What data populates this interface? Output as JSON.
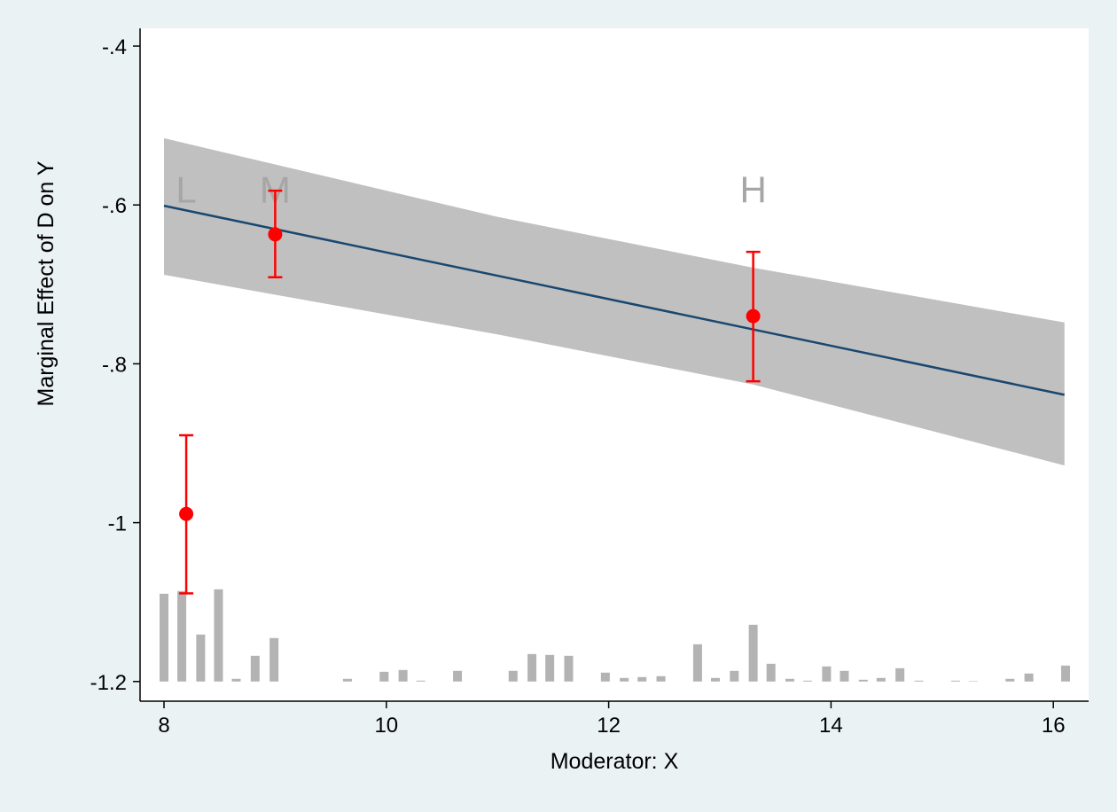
{
  "chart_data": {
    "type": "line",
    "title": "",
    "xlabel": "Moderator: X",
    "ylabel": "Marginal Effect of D on Y",
    "xlim": [
      7.8,
      16.3
    ],
    "ylim": [
      -1.225,
      -0.375
    ],
    "xticks": [
      8,
      10,
      12,
      14,
      16
    ],
    "xtick_labels": [
      "8",
      "10",
      "12",
      "14",
      "16"
    ],
    "yticks": [
      -0.4,
      -0.6,
      -0.8,
      -1.0,
      -1.2
    ],
    "ytick_labels": [
      "-.4",
      "-.6",
      "-.8",
      "-1",
      "-1.2"
    ],
    "grid": false,
    "colors": {
      "band": "#c0c0c0",
      "line": "#1a476f",
      "points": "#ff0000",
      "hist": "#b3b3b3",
      "annotation": "#a6a6a6",
      "background": "#eaf2f3"
    },
    "line": {
      "x": [
        8.0,
        16.1
      ],
      "y": [
        -0.601,
        -0.839
      ]
    },
    "confidence_band": {
      "x": [
        8.0,
        11.0,
        13.3,
        16.1
      ],
      "upper": [
        -0.516,
        -0.615,
        -0.679,
        -0.748
      ],
      "lower": [
        -0.688,
        -0.763,
        -0.826,
        -0.928
      ]
    },
    "bin_estimates": [
      {
        "label": "L",
        "x": 8.2,
        "y": -0.989,
        "ci_low": -1.089,
        "ci_high": -0.89
      },
      {
        "label": "M",
        "x": 9.0,
        "y": -0.637,
        "ci_low": -0.691,
        "ci_high": -0.582
      },
      {
        "label": "H",
        "x": 13.3,
        "y": -0.74,
        "ci_low": -0.822,
        "ci_high": -0.659
      }
    ],
    "annotation_y": -0.58,
    "histogram": {
      "baseline": -1.2,
      "x": [
        8.0,
        8.16,
        8.33,
        8.49,
        8.65,
        8.82,
        8.99,
        9.65,
        9.98,
        10.15,
        10.31,
        10.64,
        11.14,
        11.31,
        11.47,
        11.64,
        11.97,
        12.14,
        12.3,
        12.47,
        12.8,
        12.96,
        13.13,
        13.3,
        13.46,
        13.63,
        13.79,
        13.96,
        14.12,
        14.29,
        14.45,
        14.62,
        14.79,
        15.12,
        15.28,
        15.61,
        15.78,
        16.11
      ],
      "relative_frequency": [
        99,
        102,
        53,
        104,
        3,
        29,
        49,
        3,
        11,
        13,
        1,
        12,
        12,
        31,
        30,
        29,
        10,
        4,
        5,
        6,
        42,
        4,
        12,
        64,
        20,
        3,
        1,
        17,
        12,
        2,
        4,
        15,
        1,
        1,
        0.3,
        3,
        9,
        18
      ]
    }
  }
}
